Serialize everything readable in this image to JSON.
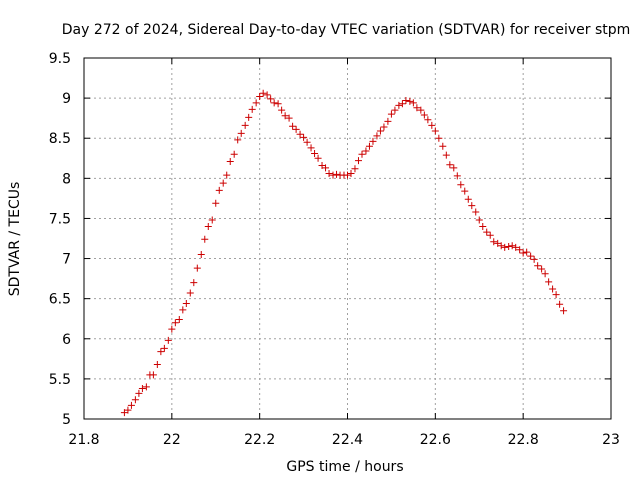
{
  "chart_data": {
    "type": "scatter",
    "title": "Day 272 of 2024, Sidereal Day-to-day VTEC variation (SDTVAR) for receiver stpm",
    "xlabel": "GPS time / hours",
    "ylabel": "SDTVAR / TECUs",
    "xlim": [
      21.8,
      23
    ],
    "ylim": [
      5,
      9.5
    ],
    "x_ticks": [
      21.8,
      22,
      22.2,
      22.4,
      22.6,
      22.8,
      23
    ],
    "x_tick_labels": [
      "21.8",
      "22",
      "22.2",
      "22.4",
      "22.6",
      "22.8",
      "23"
    ],
    "y_ticks": [
      5,
      5.5,
      6,
      6.5,
      7,
      7.5,
      8,
      8.5,
      9,
      9.5
    ],
    "y_tick_labels": [
      "5",
      "5.5",
      "6",
      "6.5",
      "7",
      "7.5",
      "8",
      "8.5",
      "9",
      "9.5"
    ],
    "grid": true,
    "marker": "+",
    "marker_color": "#cc0000",
    "series": [
      {
        "points": [
          [
            21.892,
            5.08
          ],
          [
            21.9,
            5.11
          ],
          [
            21.908,
            5.17
          ],
          [
            21.917,
            5.24
          ],
          [
            21.925,
            5.32
          ],
          [
            21.933,
            5.38
          ],
          [
            21.942,
            5.4
          ],
          [
            21.95,
            5.55
          ],
          [
            21.958,
            5.55
          ],
          [
            21.967,
            5.68
          ],
          [
            21.975,
            5.84
          ],
          [
            21.983,
            5.88
          ],
          [
            21.992,
            5.98
          ],
          [
            22.0,
            6.12
          ],
          [
            22.008,
            6.2
          ],
          [
            22.017,
            6.24
          ],
          [
            22.025,
            6.36
          ],
          [
            22.033,
            6.44
          ],
          [
            22.042,
            6.57
          ],
          [
            22.05,
            6.7
          ],
          [
            22.058,
            6.88
          ],
          [
            22.067,
            7.05
          ],
          [
            22.075,
            7.24
          ],
          [
            22.083,
            7.4
          ],
          [
            22.092,
            7.48
          ],
          [
            22.1,
            7.69
          ],
          [
            22.108,
            7.85
          ],
          [
            22.117,
            7.94
          ],
          [
            22.125,
            8.04
          ],
          [
            22.133,
            8.21
          ],
          [
            22.142,
            8.3
          ],
          [
            22.15,
            8.48
          ],
          [
            22.158,
            8.56
          ],
          [
            22.167,
            8.66
          ],
          [
            22.175,
            8.76
          ],
          [
            22.183,
            8.86
          ],
          [
            22.192,
            8.94
          ],
          [
            22.2,
            9.02
          ],
          [
            22.208,
            9.06
          ],
          [
            22.217,
            9.04
          ],
          [
            22.225,
            8.99
          ],
          [
            22.233,
            8.94
          ],
          [
            22.242,
            8.93
          ],
          [
            22.25,
            8.85
          ],
          [
            22.258,
            8.78
          ],
          [
            22.267,
            8.75
          ],
          [
            22.275,
            8.65
          ],
          [
            22.283,
            8.61
          ],
          [
            22.292,
            8.55
          ],
          [
            22.3,
            8.51
          ],
          [
            22.308,
            8.45
          ],
          [
            22.317,
            8.38
          ],
          [
            22.325,
            8.31
          ],
          [
            22.333,
            8.25
          ],
          [
            22.342,
            8.16
          ],
          [
            22.35,
            8.13
          ],
          [
            22.358,
            8.06
          ],
          [
            22.367,
            8.04
          ],
          [
            22.375,
            8.05
          ],
          [
            22.383,
            8.04
          ],
          [
            22.392,
            8.04
          ],
          [
            22.4,
            8.04
          ],
          [
            22.408,
            8.06
          ],
          [
            22.417,
            8.12
          ],
          [
            22.425,
            8.22
          ],
          [
            22.433,
            8.3
          ],
          [
            22.442,
            8.34
          ],
          [
            22.45,
            8.4
          ],
          [
            22.458,
            8.46
          ],
          [
            22.467,
            8.53
          ],
          [
            22.475,
            8.59
          ],
          [
            22.483,
            8.64
          ],
          [
            22.492,
            8.71
          ],
          [
            22.5,
            8.8
          ],
          [
            22.508,
            8.85
          ],
          [
            22.517,
            8.91
          ],
          [
            22.525,
            8.93
          ],
          [
            22.533,
            8.97
          ],
          [
            22.542,
            8.96
          ],
          [
            22.55,
            8.94
          ],
          [
            22.558,
            8.88
          ],
          [
            22.567,
            8.85
          ],
          [
            22.575,
            8.79
          ],
          [
            22.583,
            8.73
          ],
          [
            22.592,
            8.66
          ],
          [
            22.6,
            8.59
          ],
          [
            22.608,
            8.5
          ],
          [
            22.617,
            8.4
          ],
          [
            22.625,
            8.29
          ],
          [
            22.633,
            8.17
          ],
          [
            22.642,
            8.13
          ],
          [
            22.65,
            8.03
          ],
          [
            22.658,
            7.92
          ],
          [
            22.667,
            7.84
          ],
          [
            22.675,
            7.74
          ],
          [
            22.683,
            7.66
          ],
          [
            22.692,
            7.58
          ],
          [
            22.7,
            7.48
          ],
          [
            22.708,
            7.4
          ],
          [
            22.717,
            7.33
          ],
          [
            22.725,
            7.29
          ],
          [
            22.733,
            7.21
          ],
          [
            22.742,
            7.19
          ],
          [
            22.75,
            7.16
          ],
          [
            22.758,
            7.14
          ],
          [
            22.767,
            7.15
          ],
          [
            22.775,
            7.16
          ],
          [
            22.783,
            7.14
          ],
          [
            22.792,
            7.11
          ],
          [
            22.8,
            7.07
          ],
          [
            22.808,
            7.08
          ],
          [
            22.817,
            7.03
          ],
          [
            22.825,
            6.99
          ],
          [
            22.833,
            6.91
          ],
          [
            22.842,
            6.87
          ],
          [
            22.85,
            6.81
          ],
          [
            22.858,
            6.71
          ],
          [
            22.867,
            6.62
          ],
          [
            22.875,
            6.55
          ],
          [
            22.883,
            6.43
          ],
          [
            22.892,
            6.35
          ]
        ]
      }
    ]
  }
}
